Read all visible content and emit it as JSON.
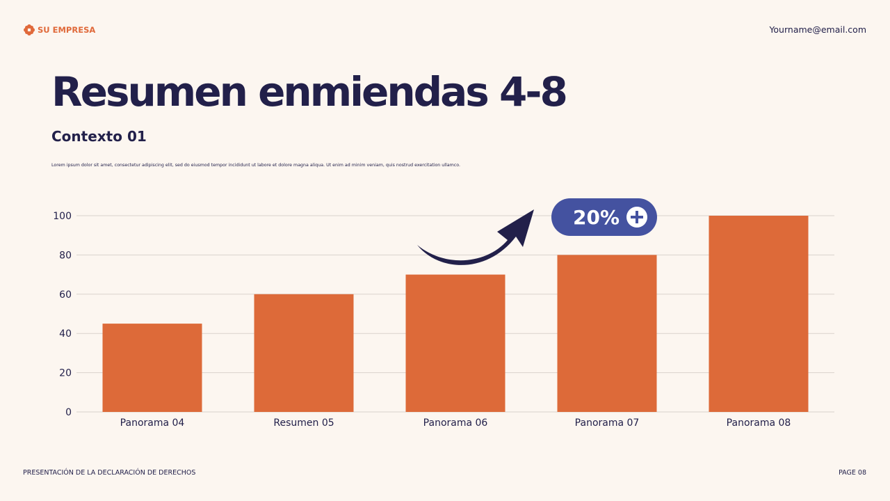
{
  "header": {
    "brand": "SU EMPRESA",
    "email": "Yourname@email.com"
  },
  "title": "Resumen enmiendas 4-8",
  "subtitle": "Contexto 01",
  "body": "Lorem ipsum dolor sit amet, consectetur adipiscing elit, sed do eiusmod tempor incididunt ut labore et dolore magna aliqua. Ut enim ad minim veniam, quis nostrud exercitation ullamco.",
  "badge": {
    "label": "20%",
    "icon": "plus-circle-icon"
  },
  "footer": {
    "left": "PRESENTACIÓN DE LA DECLARACIÓN DE DERECHOS",
    "right": "PAGE 08"
  },
  "colors": {
    "bar": "#dd6a39",
    "accent": "#4452a0",
    "arrow": "#22204a"
  },
  "chart_data": {
    "type": "bar",
    "categories": [
      "Panorama 04",
      "Resumen 05",
      "Panorama 06",
      "Panorama 07",
      "Panorama 08"
    ],
    "values": [
      45,
      60,
      70,
      80,
      100
    ],
    "ylim": [
      0,
      100
    ],
    "yticks": [
      0,
      20,
      40,
      60,
      80,
      100
    ],
    "grid": true,
    "xlabel": "",
    "ylabel": "",
    "title": ""
  }
}
